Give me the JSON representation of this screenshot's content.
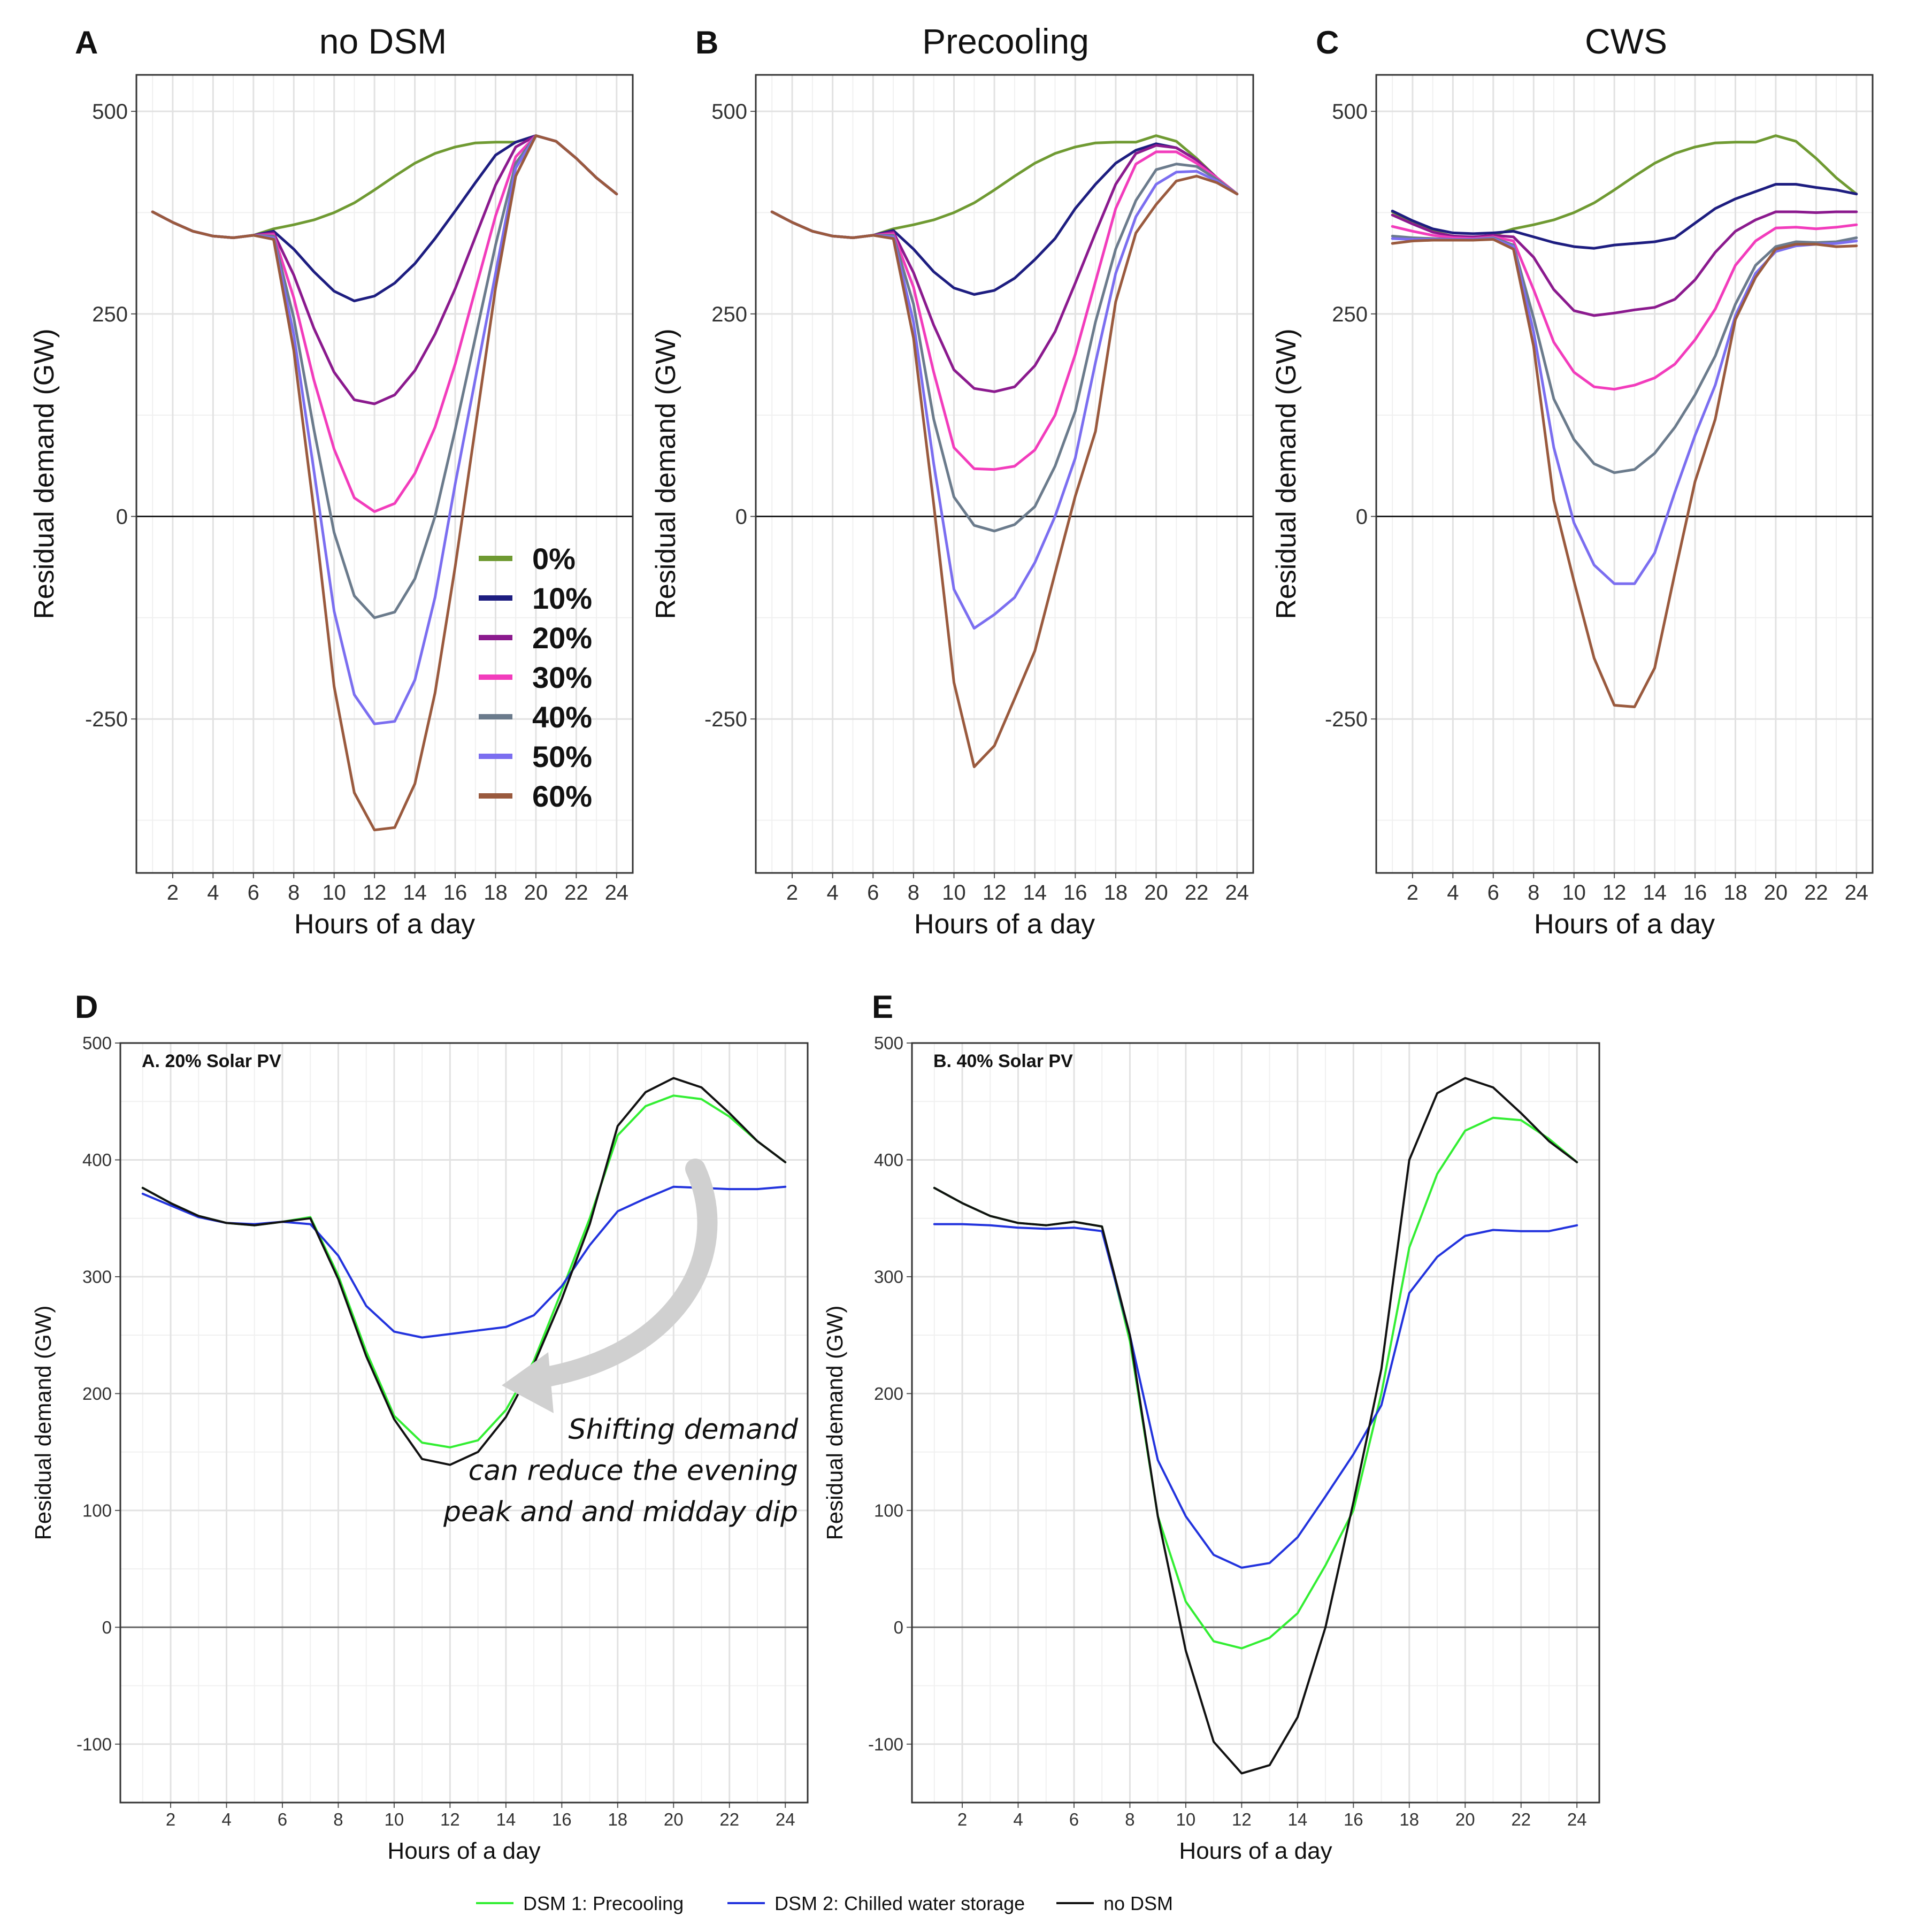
{
  "chart_data": [
    {
      "id": "A",
      "type": "line",
      "panel_label": "A",
      "title": "no DSM",
      "xlabel": "Hours of a day",
      "ylabel": "Residual demand (GW)",
      "xlim": [
        0.2,
        24.8
      ],
      "ylim": [
        -440,
        545
      ],
      "xticks": [
        2,
        4,
        6,
        8,
        10,
        12,
        14,
        16,
        18,
        20,
        22,
        24
      ],
      "yticks": [
        -250,
        0,
        250,
        500
      ],
      "x": [
        1,
        2,
        3,
        4,
        5,
        6,
        7,
        8,
        9,
        10,
        11,
        12,
        13,
        14,
        15,
        16,
        17,
        18,
        19,
        20,
        21,
        22,
        23,
        24
      ],
      "series": [
        {
          "name": "0%",
          "color": "#6f9a32",
          "values": [
            376,
            363,
            352,
            346,
            344,
            347,
            355,
            360,
            366,
            375,
            387,
            403,
            420,
            436,
            448,
            456,
            461,
            462,
            462,
            470,
            463,
            442,
            418,
            398
          ]
        },
        {
          "name": "10%",
          "color": "#1d1d80",
          "values": [
            376,
            363,
            352,
            346,
            344,
            347,
            352,
            330,
            302,
            278,
            266,
            272,
            288,
            312,
            343,
            377,
            412,
            446,
            462,
            470,
            463,
            442,
            418,
            398
          ]
        },
        {
          "name": "20%",
          "color": "#8b1a8e",
          "values": [
            376,
            363,
            352,
            346,
            344,
            347,
            350,
            298,
            232,
            178,
            144,
            139,
            150,
            180,
            225,
            281,
            345,
            409,
            456,
            470,
            463,
            442,
            418,
            398
          ]
        },
        {
          "name": "30%",
          "color": "#f23cbc",
          "values": [
            376,
            363,
            352,
            346,
            344,
            347,
            348,
            270,
            168,
            83,
            23,
            6,
            16,
            53,
            110,
            188,
            280,
            371,
            444,
            470,
            463,
            442,
            418,
            398
          ]
        },
        {
          "name": "40%",
          "color": "#6b7b8c",
          "values": [
            376,
            363,
            352,
            346,
            344,
            347,
            346,
            245,
            107,
            -20,
            -98,
            -125,
            -118,
            -77,
            0,
            107,
            221,
            335,
            436,
            470,
            463,
            442,
            418,
            398
          ]
        },
        {
          "name": "50%",
          "color": "#7b6ef0",
          "values": [
            376,
            363,
            352,
            346,
            344,
            347,
            344,
            225,
            56,
            -117,
            -220,
            -256,
            -253,
            -202,
            -100,
            40,
            170,
            300,
            430,
            470,
            463,
            442,
            418,
            398
          ]
        },
        {
          "name": "60%",
          "color": "#9a5a3e",
          "values": [
            376,
            363,
            352,
            346,
            344,
            347,
            342,
            205,
            7,
            -210,
            -341,
            -387,
            -384,
            -330,
            -218,
            -62,
            110,
            282,
            420,
            470,
            463,
            442,
            418,
            398
          ]
        }
      ]
    },
    {
      "id": "B",
      "type": "line",
      "panel_label": "B",
      "title": "Precooling",
      "xlabel": "Hours of a day",
      "ylabel": "Residual demand (GW)",
      "xlim": [
        0.2,
        24.8
      ],
      "ylim": [
        -440,
        545
      ],
      "xticks": [
        2,
        4,
        6,
        8,
        10,
        12,
        14,
        16,
        18,
        20,
        22,
        24
      ],
      "yticks": [
        -250,
        0,
        250,
        500
      ],
      "x": [
        1,
        2,
        3,
        4,
        5,
        6,
        7,
        8,
        9,
        10,
        11,
        12,
        13,
        14,
        15,
        16,
        17,
        18,
        19,
        20,
        21,
        22,
        23,
        24
      ],
      "series": [
        {
          "name": "0%",
          "color": "#6f9a32",
          "values": [
            376,
            363,
            352,
            346,
            344,
            347,
            355,
            360,
            366,
            375,
            387,
            403,
            420,
            436,
            448,
            456,
            461,
            462,
            462,
            470,
            463,
            442,
            418,
            398
          ]
        },
        {
          "name": "10%",
          "color": "#1d1d80",
          "values": [
            376,
            363,
            352,
            346,
            344,
            347,
            353,
            330,
            302,
            282,
            274,
            279,
            294,
            317,
            343,
            380,
            410,
            436,
            452,
            460,
            455,
            440,
            418,
            398
          ]
        },
        {
          "name": "20%",
          "color": "#8b1a8e",
          "values": [
            376,
            363,
            352,
            346,
            344,
            347,
            351,
            301,
            236,
            181,
            158,
            154,
            160,
            186,
            228,
            288,
            350,
            410,
            448,
            458,
            455,
            440,
            418,
            398
          ]
        },
        {
          "name": "30%",
          "color": "#f23cbc",
          "values": [
            376,
            363,
            352,
            346,
            344,
            347,
            349,
            283,
            178,
            85,
            59,
            58,
            62,
            82,
            125,
            200,
            290,
            380,
            435,
            450,
            450,
            436,
            418,
            398
          ]
        },
        {
          "name": "40%",
          "color": "#6b7b8c",
          "values": [
            376,
            363,
            352,
            346,
            344,
            347,
            347,
            262,
            120,
            24,
            -11,
            -18,
            -10,
            12,
            62,
            130,
            240,
            330,
            390,
            428,
            435,
            432,
            416,
            398
          ]
        },
        {
          "name": "50%",
          "color": "#7b6ef0",
          "values": [
            376,
            363,
            352,
            346,
            344,
            347,
            345,
            240,
            65,
            -90,
            -138,
            -121,
            -100,
            -57,
            0,
            72,
            190,
            300,
            370,
            410,
            425,
            426,
            414,
            398
          ]
        },
        {
          "name": "60%",
          "color": "#9a5a3e",
          "values": [
            376,
            363,
            352,
            346,
            344,
            347,
            343,
            220,
            15,
            -205,
            -309,
            -283,
            -225,
            -166,
            -70,
            25,
            105,
            265,
            350,
            385,
            414,
            420,
            412,
            398
          ]
        }
      ]
    },
    {
      "id": "C",
      "type": "line",
      "panel_label": "C",
      "title": "CWS",
      "xlabel": "Hours of a day",
      "ylabel": "Residual demand (GW)",
      "xlim": [
        0.2,
        24.8
      ],
      "ylim": [
        -440,
        545
      ],
      "xticks": [
        2,
        4,
        6,
        8,
        10,
        12,
        14,
        16,
        18,
        20,
        22,
        24
      ],
      "yticks": [
        -250,
        0,
        250,
        500
      ],
      "x": [
        1,
        2,
        3,
        4,
        5,
        6,
        7,
        8,
        9,
        10,
        11,
        12,
        13,
        14,
        15,
        16,
        17,
        18,
        19,
        20,
        21,
        22,
        23,
        24
      ],
      "series": [
        {
          "name": "0%",
          "color": "#6f9a32",
          "values": [
            376,
            363,
            352,
            346,
            344,
            347,
            355,
            360,
            366,
            375,
            387,
            403,
            420,
            436,
            448,
            456,
            461,
            462,
            462,
            470,
            463,
            442,
            418,
            398
          ]
        },
        {
          "name": "10%",
          "color": "#1d1d80",
          "values": [
            377,
            365,
            355,
            350,
            349,
            350,
            352,
            345,
            338,
            333,
            331,
            335,
            337,
            339,
            344,
            362,
            380,
            392,
            401,
            410,
            410,
            406,
            403,
            398
          ]
        },
        {
          "name": "20%",
          "color": "#8b1a8e",
          "values": [
            372,
            361,
            351,
            346,
            345,
            347,
            345,
            320,
            280,
            254,
            248,
            251,
            255,
            258,
            268,
            292,
            326,
            352,
            366,
            376,
            376,
            375,
            376,
            376
          ]
        },
        {
          "name": "30%",
          "color": "#f23cbc",
          "values": [
            358,
            352,
            347,
            344,
            343,
            345,
            340,
            280,
            215,
            178,
            160,
            157,
            162,
            171,
            188,
            218,
            256,
            310,
            340,
            356,
            357,
            355,
            357,
            360
          ]
        },
        {
          "name": "40%",
          "color": "#6b7b8c",
          "values": [
            346,
            344,
            343,
            342,
            342,
            344,
            335,
            245,
            145,
            95,
            65,
            54,
            58,
            78,
            110,
            150,
            198,
            262,
            310,
            333,
            339,
            338,
            339,
            344
          ]
        },
        {
          "name": "50%",
          "color": "#7b6ef0",
          "values": [
            343,
            342,
            342,
            342,
            342,
            343,
            333,
            228,
            85,
            -8,
            -60,
            -83,
            -83,
            -45,
            30,
            100,
            162,
            248,
            300,
            327,
            334,
            336,
            337,
            340
          ]
        },
        {
          "name": "60%",
          "color": "#9a5a3e",
          "values": [
            337,
            340,
            341,
            341,
            341,
            342,
            330,
            210,
            20,
            -80,
            -175,
            -233,
            -235,
            -187,
            -70,
            43,
            120,
            243,
            295,
            330,
            336,
            336,
            333,
            334
          ]
        }
      ]
    },
    {
      "id": "D",
      "type": "line",
      "panel_label": "D",
      "subtitle": "A. 20% Solar PV",
      "xlabel": "Hours of a day",
      "ylabel": "Residual demand (GW)",
      "xlim": [
        0.2,
        24.8
      ],
      "ylim": [
        -150,
        500
      ],
      "xticks": [
        2,
        4,
        6,
        8,
        10,
        12,
        14,
        16,
        18,
        20,
        22,
        24
      ],
      "yticks": [
        -100,
        0,
        100,
        200,
        300,
        400,
        500
      ],
      "x": [
        1,
        2,
        3,
        4,
        5,
        6,
        7,
        8,
        9,
        10,
        11,
        12,
        13,
        14,
        15,
        16,
        17,
        18,
        19,
        20,
        21,
        22,
        23,
        24
      ],
      "annotation": [
        "Shifting demand",
        "can reduce the evening",
        "peak and and midday dip"
      ],
      "series": [
        {
          "name": "DSM 1: Precooling",
          "color": "#33ee33",
          "values": [
            376,
            363,
            352,
            346,
            344,
            347,
            351,
            301,
            236,
            181,
            158,
            154,
            160,
            186,
            228,
            288,
            350,
            421,
            446,
            455,
            452,
            437,
            416,
            398
          ]
        },
        {
          "name": "DSM 2: Chilled water storage",
          "color": "#2233dd",
          "values": [
            371,
            361,
            351,
            346,
            345,
            347,
            345,
            318,
            275,
            253,
            248,
            251,
            254,
            257,
            267,
            292,
            327,
            356,
            367,
            377,
            376,
            375,
            375,
            377
          ]
        },
        {
          "name": "no DSM",
          "color": "#111111",
          "values": [
            376,
            363,
            352,
            346,
            344,
            347,
            350,
            298,
            232,
            178,
            144,
            139,
            150,
            180,
            225,
            281,
            345,
            429,
            458,
            470,
            462,
            440,
            416,
            398
          ]
        }
      ]
    },
    {
      "id": "E",
      "type": "line",
      "panel_label": "E",
      "subtitle": "B. 40% Solar PV",
      "xlabel": "Hours of a day",
      "ylabel": "Residual demand (GW)",
      "xlim": [
        0.2,
        24.8
      ],
      "ylim": [
        -150,
        500
      ],
      "xticks": [
        2,
        4,
        6,
        8,
        10,
        12,
        14,
        16,
        18,
        20,
        22,
        24
      ],
      "yticks": [
        -100,
        0,
        100,
        200,
        300,
        400,
        500
      ],
      "x": [
        1,
        2,
        3,
        4,
        5,
        6,
        7,
        8,
        9,
        10,
        11,
        12,
        13,
        14,
        15,
        16,
        17,
        18,
        19,
        20,
        21,
        22,
        23,
        24
      ],
      "series": [
        {
          "name": "DSM 1: Precooling",
          "color": "#33ee33",
          "values": [
            376,
            363,
            352,
            346,
            344,
            347,
            343,
            245,
            95,
            22,
            -12,
            -18,
            -9,
            12,
            53,
            100,
            200,
            325,
            388,
            425,
            436,
            434,
            418,
            398
          ]
        },
        {
          "name": "DSM 2: Chilled water storage",
          "color": "#2233dd",
          "values": [
            345,
            345,
            344,
            342,
            341,
            342,
            339,
            250,
            143,
            95,
            62,
            51,
            55,
            77,
            112,
            148,
            190,
            286,
            317,
            335,
            340,
            339,
            339,
            344
          ]
        },
        {
          "name": "no DSM",
          "color": "#111111",
          "values": [
            376,
            363,
            352,
            346,
            344,
            347,
            343,
            250,
            95,
            -20,
            -98,
            -125,
            -118,
            -77,
            0,
            107,
            221,
            400,
            457,
            470,
            462,
            440,
            416,
            398
          ]
        }
      ]
    }
  ],
  "top_legend": [
    {
      "label": "0%",
      "color": "#6f9a32"
    },
    {
      "label": "10%",
      "color": "#1d1d80"
    },
    {
      "label": "20%",
      "color": "#8b1a8e"
    },
    {
      "label": "30%",
      "color": "#f23cbc"
    },
    {
      "label": "40%",
      "color": "#6b7b8c"
    },
    {
      "label": "50%",
      "color": "#7b6ef0"
    },
    {
      "label": "60%",
      "color": "#9a5a3e"
    }
  ],
  "bottom_legend": [
    {
      "label": "DSM 1: Precooling",
      "color": "#33ee33"
    },
    {
      "label": "DSM 2: Chilled water storage",
      "color": "#2233dd"
    },
    {
      "label": "no DSM",
      "color": "#111111"
    }
  ]
}
